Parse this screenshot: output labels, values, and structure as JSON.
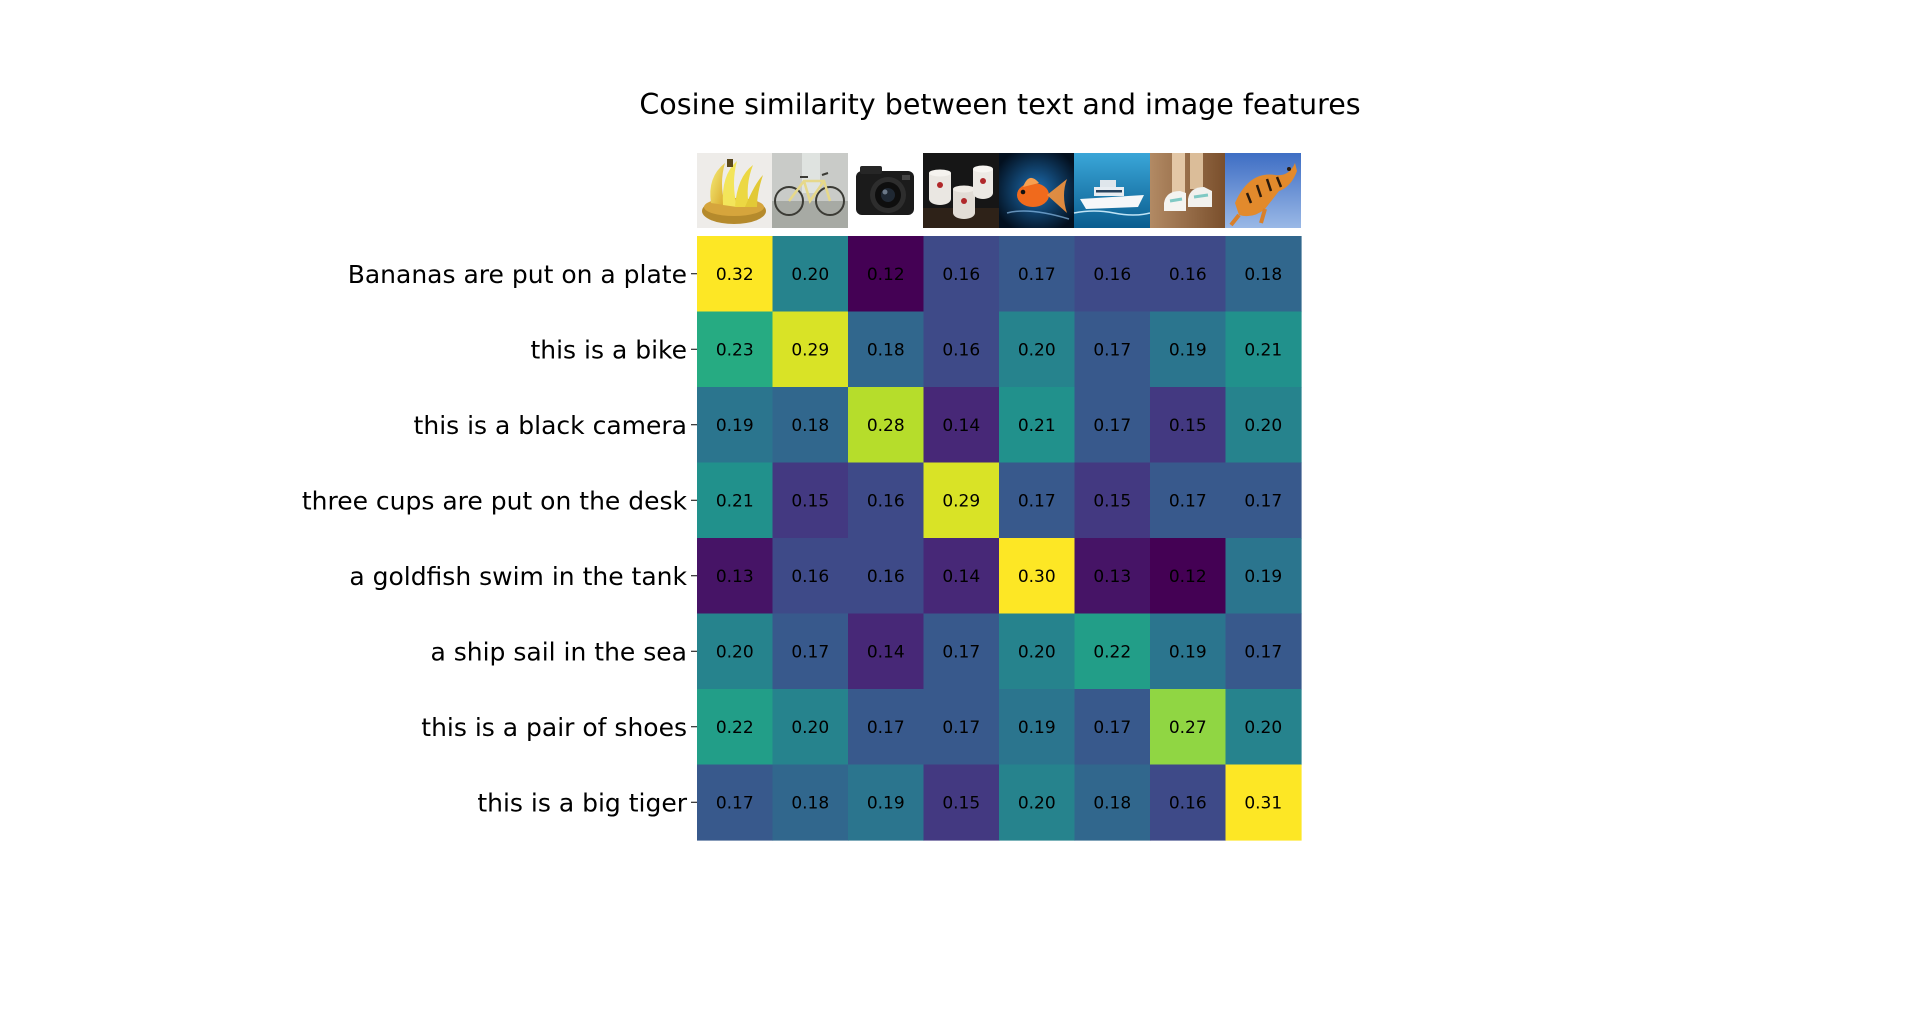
{
  "chart_data": {
    "type": "heatmap",
    "title": "Cosine similarity between text and image features",
    "row_labels": [
      "Bananas are put on a plate",
      "this is a bike",
      "this is a black camera",
      "three cups are put on the desk",
      "a goldfish swim in the tank",
      "a ship sail in the sea",
      "this is a pair of shoes",
      "this is a big tiger"
    ],
    "column_images": [
      "banana-bunch-image",
      "bicycle-image",
      "black-camera-image",
      "three-cups-image",
      "goldfish-image",
      "ship-image",
      "shoes-image",
      "tiger-image"
    ],
    "values": [
      [
        0.32,
        0.2,
        0.12,
        0.16,
        0.17,
        0.16,
        0.16,
        0.18
      ],
      [
        0.23,
        0.29,
        0.18,
        0.16,
        0.2,
        0.17,
        0.19,
        0.21
      ],
      [
        0.19,
        0.18,
        0.28,
        0.14,
        0.21,
        0.17,
        0.15,
        0.2
      ],
      [
        0.21,
        0.15,
        0.16,
        0.29,
        0.17,
        0.15,
        0.17,
        0.17
      ],
      [
        0.13,
        0.16,
        0.16,
        0.14,
        0.3,
        0.13,
        0.12,
        0.19
      ],
      [
        0.2,
        0.17,
        0.14,
        0.17,
        0.2,
        0.22,
        0.19,
        0.17
      ],
      [
        0.22,
        0.2,
        0.17,
        0.17,
        0.19,
        0.17,
        0.27,
        0.2
      ],
      [
        0.17,
        0.18,
        0.19,
        0.15,
        0.2,
        0.18,
        0.16,
        0.31
      ]
    ],
    "colormap": "viridis",
    "color_range": [
      0.12,
      0.3
    ],
    "grid": false,
    "legend": "none"
  }
}
